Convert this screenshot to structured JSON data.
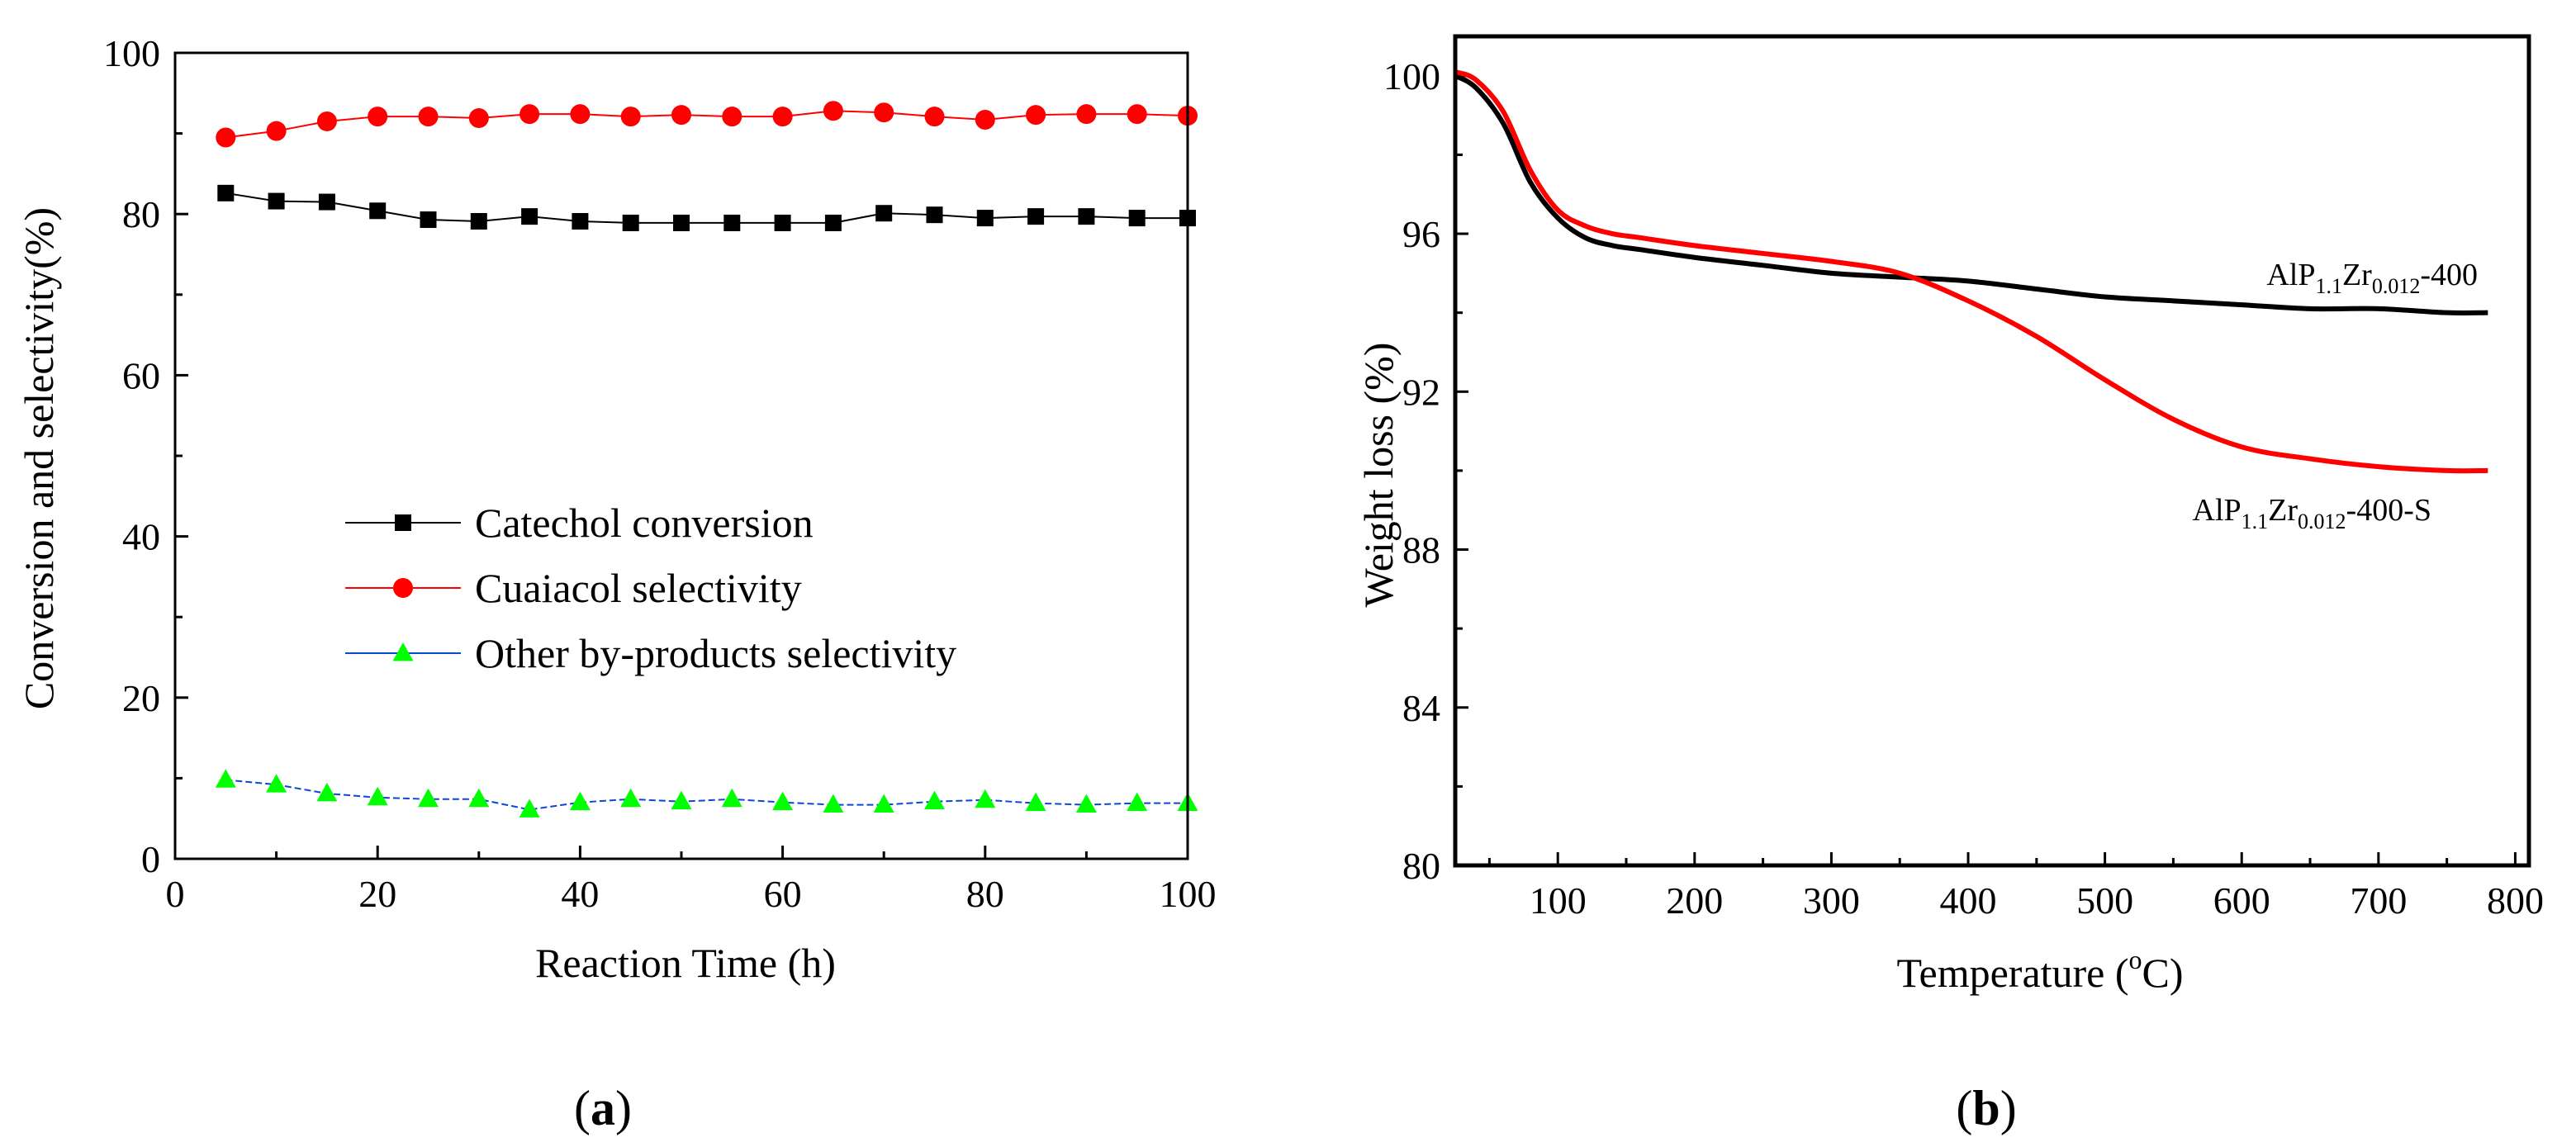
{
  "chart_data": [
    {
      "type": "line",
      "panel": "a",
      "panel_label": "a",
      "xlabel": "Reaction Time (h)",
      "ylabel": "Conversion and selectivity(%)",
      "xlim": [
        0,
        100
      ],
      "ylim": [
        0,
        100
      ],
      "xticks": [
        0,
        20,
        40,
        60,
        80,
        100
      ],
      "yticks": [
        0,
        20,
        40,
        60,
        80,
        100
      ],
      "legend_position": "center-left",
      "x": [
        5,
        10,
        15,
        20,
        25,
        30,
        35,
        40,
        45,
        50,
        55,
        60,
        65,
        70,
        75,
        80,
        85,
        90,
        95,
        100
      ],
      "series": [
        {
          "name": "Catechol conversion",
          "color": "#000000",
          "marker": "square",
          "values": [
            82.6,
            81.6,
            81.5,
            80.4,
            79.3,
            79.1,
            79.7,
            79.1,
            78.9,
            78.9,
            78.9,
            78.9,
            78.9,
            80.1,
            79.9,
            79.5,
            79.7,
            79.7,
            79.5,
            79.5
          ]
        },
        {
          "name": "Cuaiacol selectivity",
          "color": "#ff0000",
          "marker": "circle",
          "values": [
            89.5,
            90.3,
            91.5,
            92.1,
            92.1,
            91.9,
            92.4,
            92.4,
            92.1,
            92.3,
            92.1,
            92.1,
            92.8,
            92.6,
            92.1,
            91.7,
            92.3,
            92.4,
            92.4,
            92.2
          ]
        },
        {
          "name": "Other by-products selectivity",
          "color": "#0b47d6",
          "marker_color": "#00ff00",
          "marker": "triangle",
          "values": [
            9.8,
            9.2,
            8.1,
            7.6,
            7.4,
            7.4,
            6.1,
            7.0,
            7.4,
            7.1,
            7.4,
            7.0,
            6.7,
            6.7,
            7.1,
            7.3,
            6.9,
            6.7,
            6.9,
            6.9
          ]
        }
      ]
    },
    {
      "type": "line",
      "panel": "b",
      "panel_label": "b",
      "xlabel": "Temperature (°C)",
      "xlabel_parts": [
        "Temperature (",
        "o",
        "C)"
      ],
      "ylabel": "Weight loss (%)",
      "xlim": [
        25,
        810
      ],
      "ylim": [
        80,
        101
      ],
      "xticks": [
        100,
        200,
        300,
        400,
        500,
        600,
        700,
        800
      ],
      "yticks": [
        80,
        84,
        88,
        92,
        96,
        100
      ],
      "annotations": [
        {
          "series": "AlP1.1Zr0.012-400",
          "parts": [
            "AlP",
            "1.1",
            "Zr",
            "0.012",
            "-400"
          ]
        },
        {
          "series": "AlP1.1Zr0.012-400-S",
          "parts": [
            "AlP",
            "1.1",
            "Zr",
            "0.012",
            "-400-S"
          ]
        }
      ],
      "series": [
        {
          "name": "AlP1.1Zr0.012-400",
          "color": "#000000",
          "x": [
            25,
            40,
            60,
            80,
            100,
            120,
            140,
            160,
            200,
            250,
            300,
            350,
            400,
            450,
            500,
            550,
            600,
            650,
            700,
            750,
            780
          ],
          "values": [
            100.0,
            99.7,
            98.8,
            97.3,
            96.4,
            95.9,
            95.7,
            95.6,
            95.4,
            95.2,
            95.0,
            94.9,
            94.8,
            94.6,
            94.4,
            94.3,
            94.2,
            94.1,
            94.1,
            94.0,
            94.0
          ]
        },
        {
          "name": "AlP1.1Zr0.012-400-S",
          "color": "#ff0000",
          "x": [
            25,
            40,
            60,
            80,
            100,
            120,
            140,
            160,
            200,
            250,
            300,
            350,
            400,
            450,
            500,
            550,
            600,
            650,
            700,
            750,
            780
          ],
          "values": [
            100.1,
            99.9,
            99.1,
            97.6,
            96.6,
            96.2,
            96.0,
            95.9,
            95.7,
            95.5,
            95.3,
            95.0,
            94.3,
            93.4,
            92.3,
            91.3,
            90.6,
            90.3,
            90.1,
            90.0,
            90.0
          ]
        }
      ]
    }
  ]
}
